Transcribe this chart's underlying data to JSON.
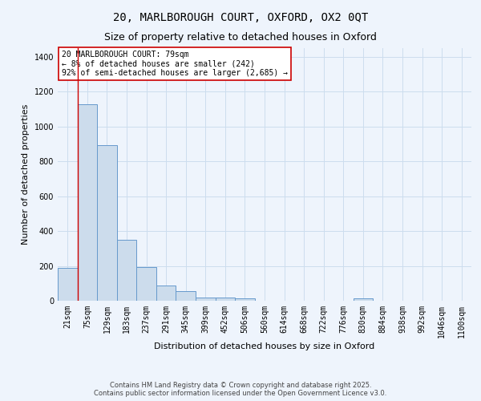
{
  "title": "20, MARLBOROUGH COURT, OXFORD, OX2 0QT",
  "subtitle": "Size of property relative to detached houses in Oxford",
  "xlabel": "Distribution of detached houses by size in Oxford",
  "ylabel": "Number of detached properties",
  "bin_labels": [
    "21sqm",
    "75sqm",
    "129sqm",
    "183sqm",
    "237sqm",
    "291sqm",
    "345sqm",
    "399sqm",
    "452sqm",
    "506sqm",
    "560sqm",
    "614sqm",
    "668sqm",
    "722sqm",
    "776sqm",
    "830sqm",
    "884sqm",
    "938sqm",
    "992sqm",
    "1046sqm",
    "1100sqm"
  ],
  "bar_heights": [
    190,
    1130,
    895,
    350,
    195,
    88,
    55,
    20,
    20,
    12,
    0,
    0,
    0,
    0,
    0,
    12,
    0,
    0,
    0,
    0,
    0
  ],
  "bar_color": "#ccdcec",
  "bar_edge_color": "#6699cc",
  "grid_color": "#ccddee",
  "background_color": "#eef4fc",
  "vline_color": "#cc0000",
  "annotation_text": "20 MARLBOROUGH COURT: 79sqm\n← 8% of detached houses are smaller (242)\n92% of semi-detached houses are larger (2,685) →",
  "annotation_box_color": "#ffffff",
  "annotation_box_edge": "#cc0000",
  "ylim": [
    0,
    1450
  ],
  "footer": "Contains HM Land Registry data © Crown copyright and database right 2025.\nContains public sector information licensed under the Open Government Licence v3.0.",
  "title_fontsize": 10,
  "subtitle_fontsize": 9,
  "ylabel_fontsize": 8,
  "xlabel_fontsize": 8,
  "tick_fontsize": 7,
  "footer_fontsize": 6,
  "annotation_fontsize": 7
}
